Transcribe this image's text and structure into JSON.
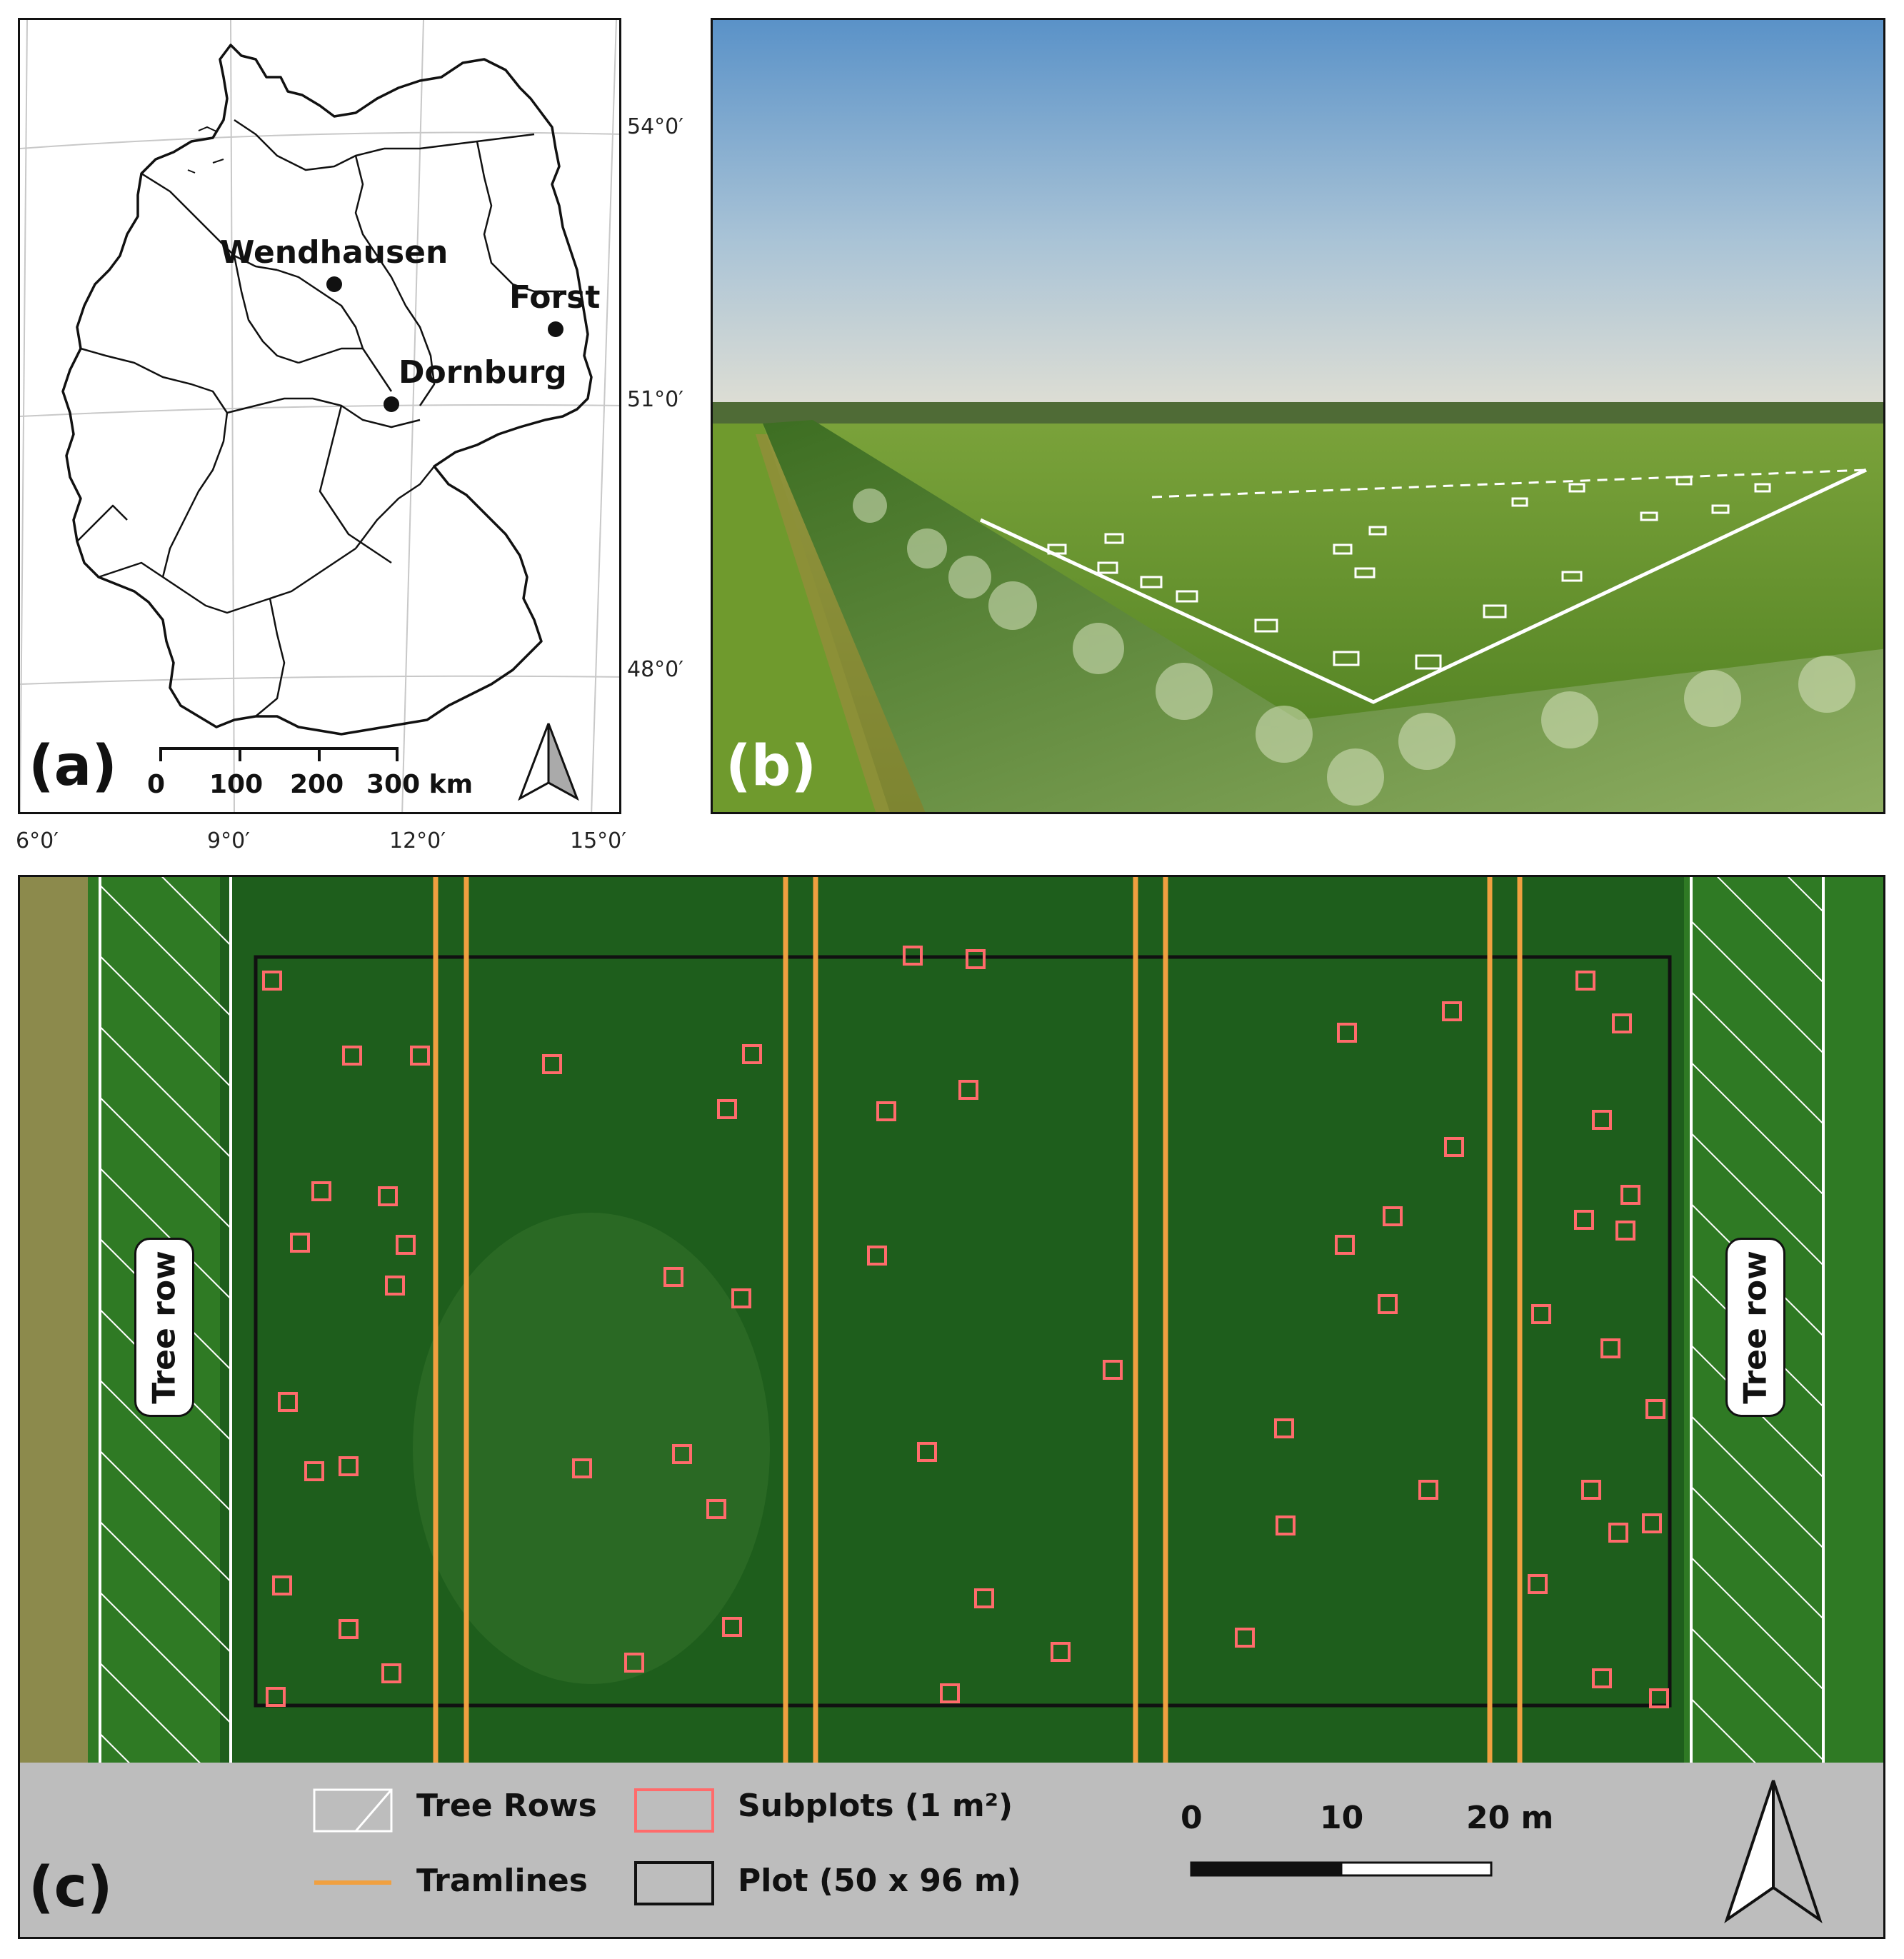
{
  "panel_a": {
    "letter": "(a)",
    "latitude_labels": [
      "54°0′",
      "51°0′",
      "48°0′"
    ],
    "longitude_labels": [
      "6°0′",
      "9°0′",
      "12°0′",
      "15°0′"
    ],
    "sites": [
      {
        "name": "Wendhausen"
      },
      {
        "name": "Forst"
      },
      {
        "name": "Dornburg"
      }
    ],
    "scale_ticks": [
      "0",
      "100",
      "200",
      "300 km"
    ],
    "north_arrow": "north-arrow-icon"
  },
  "panel_b": {
    "letter": "(b)",
    "description_icon": "aerial-photo"
  },
  "panel_c": {
    "letter": "(c)",
    "tree_row_label": "Tree row",
    "legend": {
      "tree_rows": "Tree Rows",
      "tramlines": "Tramlines",
      "subplots": "Subplots (1 m²)",
      "plot": "Plot (50 x 96 m)"
    },
    "scale_ticks": [
      "0",
      "10",
      "20 m"
    ],
    "colors": {
      "tramline": "#f0a040",
      "subplot": "#ff6b6b",
      "plot": "#111111",
      "field": "#1f6b1f"
    }
  }
}
